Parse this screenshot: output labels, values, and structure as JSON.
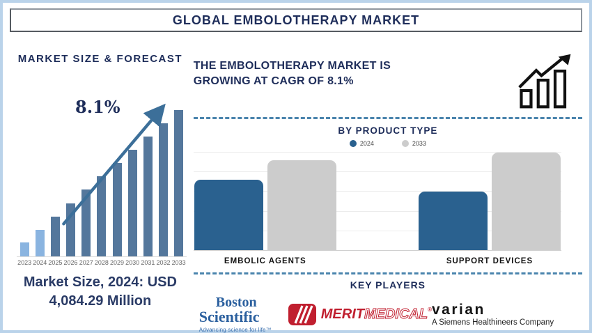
{
  "title": "GLOBAL EMBOLOTHERAPY MARKET",
  "left": {
    "heading": "MARKET SIZE & FORECAST",
    "growth_label": "8.1%",
    "market_size_line1": "Market Size, 2024: USD",
    "market_size_line2": "4,084.29 Million"
  },
  "right": {
    "headline_line1": "THE EMBOLOTHERAPY MARKET IS",
    "headline_line2": "GROWING AT CAGR OF 8.1%",
    "by_product_title": "BY PRODUCT TYPE",
    "key_players_title": "KEY PLAYERS"
  },
  "legend": {
    "items": [
      {
        "label": "2024",
        "color": "#2a618f"
      },
      {
        "label": "2033",
        "color": "#cccccc"
      }
    ]
  },
  "players": {
    "boston": {
      "line1": "Boston",
      "line2": "Scientific",
      "tagline": "Advancing science for life™"
    },
    "merit": {
      "word1": "MERIT",
      "word2": "MEDICAL",
      "reg": "®"
    },
    "varian": {
      "line1": "varian",
      "line2": "A Siemens Healthineers Company"
    }
  },
  "colors": {
    "navy": "#1e2d5a",
    "steel_blue": "#54779c",
    "light_blue": "#8ab4e0",
    "arrow_blue": "#3c6f99",
    "bar_blue": "#2a618f",
    "bar_gray": "#cccccc",
    "dash_blue": "#4a84ad",
    "page_border_blue": "#bad3ea",
    "merit_red": "#c01f2f",
    "boston_blue": "#2a5f9e"
  },
  "chart_data": [
    {
      "id": "market-size-forecast",
      "type": "bar",
      "title": "MARKET SIZE & FORECAST",
      "categories": [
        "2023",
        "2024",
        "2025",
        "2026",
        "2027",
        "2028",
        "2029",
        "2030",
        "2031",
        "2032",
        "2033"
      ],
      "values_pct_of_max": [
        10,
        18.5,
        27.5,
        36.5,
        46,
        55,
        64,
        73,
        82,
        91,
        100
      ],
      "highlight_years": [
        "2023",
        "2024"
      ],
      "annotation": "8.1%",
      "known_point": {
        "year": "2024",
        "value": "USD 4,084.29 Million"
      },
      "xlabel": "",
      "ylabel": "",
      "grid": false,
      "legend_position": "none"
    },
    {
      "id": "by-product-type",
      "type": "bar",
      "title": "BY PRODUCT TYPE",
      "categories": [
        "EMBOLIC AGENTS",
        "SUPPORT DEVICES"
      ],
      "series": [
        {
          "name": "2024",
          "values_pct_of_max": [
            72,
            60
          ],
          "color": "#2a618f"
        },
        {
          "name": "2033",
          "values_pct_of_max": [
            92,
            100
          ],
          "color": "#cccccc"
        }
      ],
      "xlabel": "",
      "ylabel": "",
      "grid": true,
      "legend_position": "top"
    }
  ]
}
